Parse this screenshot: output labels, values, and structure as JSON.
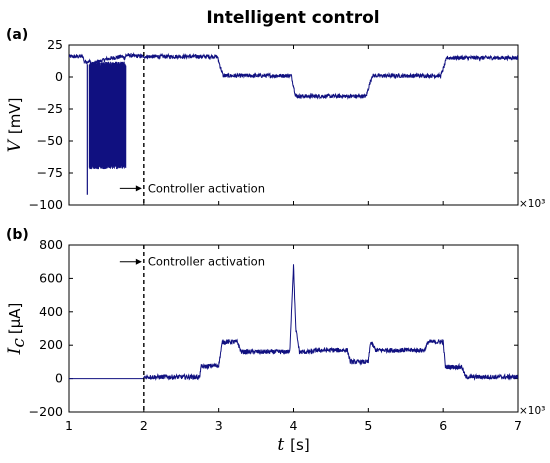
{
  "figure": {
    "title": "Intelligent control"
  },
  "chart_data": [
    {
      "type": "line",
      "panel_label": "(a)",
      "ylabel": "V",
      "yunit": "[mV]",
      "xlim": [
        1,
        7
      ],
      "ylim": [
        -100,
        25
      ],
      "xticks": [
        1,
        2,
        3,
        4,
        5,
        6,
        7
      ],
      "yticks": [
        -100,
        -75,
        -50,
        -25,
        0,
        25
      ],
      "x_multiplier": "×10³",
      "grid": false,
      "color": "#101080",
      "series": [
        {
          "x": [
            1.0,
            1.19,
            1.2,
            1.29,
            1.3,
            1.5,
            1.7,
            1.75,
            1.76,
            2.0,
            2.5,
            2.98,
            3.06,
            3.5,
            3.97,
            4.03,
            4.5,
            4.97,
            5.05,
            5.5,
            5.97,
            6.05,
            6.5,
            7.0
          ],
          "y": [
            16,
            16,
            12,
            12,
            10,
            14,
            16,
            15,
            17,
            16,
            16,
            16,
            1,
            1,
            1,
            -15,
            -15,
            -15,
            1,
            1,
            1,
            15,
            15,
            15
          ]
        }
      ],
      "oscillation": {
        "x_range": [
          1.27,
          1.76
        ],
        "y_range": [
          -72,
          12
        ],
        "min_spike": -92
      },
      "annotations": [
        {
          "text": "Controller activation",
          "x": 2.0,
          "y": -87
        }
      ]
    },
    {
      "type": "line",
      "panel_label": "(b)",
      "ylabel": "I",
      "ylabel_subscript": "c",
      "yunit": "[μA]",
      "xlabel": "t",
      "xunit": "[s]",
      "xlim": [
        1,
        7
      ],
      "ylim": [
        -200,
        800
      ],
      "xticks": [
        1,
        2,
        3,
        4,
        5,
        6,
        7
      ],
      "yticks": [
        -200,
        0,
        200,
        400,
        600,
        800
      ],
      "x_multiplier": "×10³",
      "grid": false,
      "color": "#101080",
      "series": [
        {
          "x": [
            1.0,
            2.0,
            2.01,
            2.75,
            2.76,
            3.0,
            3.05,
            3.25,
            3.3,
            3.95,
            4.0,
            4.03,
            4.08,
            4.25,
            4.3,
            4.72,
            4.76,
            5.0,
            5.03,
            5.1,
            5.75,
            5.8,
            6.0,
            6.03,
            6.25,
            6.3,
            7.0
          ],
          "y": [
            0,
            0,
            10,
            10,
            70,
            80,
            220,
            220,
            160,
            160,
            680,
            300,
            160,
            160,
            170,
            170,
            100,
            100,
            220,
            170,
            170,
            220,
            220,
            70,
            70,
            10,
            10
          ]
        }
      ],
      "annotations": [
        {
          "text": "Controller activation",
          "x": 2.0,
          "y": 700
        }
      ]
    }
  ]
}
